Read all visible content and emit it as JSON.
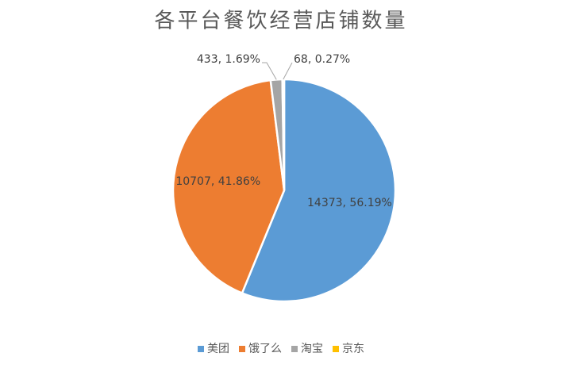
{
  "chart_data": {
    "type": "pie",
    "title": "各平台餐饮经营店铺数量",
    "categories": [
      "美团",
      "饿了么",
      "淘宝",
      "京东"
    ],
    "values": [
      14373,
      10707,
      433,
      68
    ],
    "value_labels": [
      "14373, 56.19%",
      "10707, 41.86%",
      "433, 1.69%",
      "68, 0.27%"
    ],
    "colors": [
      "#5b9bd5",
      "#ed7d31",
      "#a5a5a5",
      "#ffc000"
    ],
    "legend": "bottom"
  }
}
